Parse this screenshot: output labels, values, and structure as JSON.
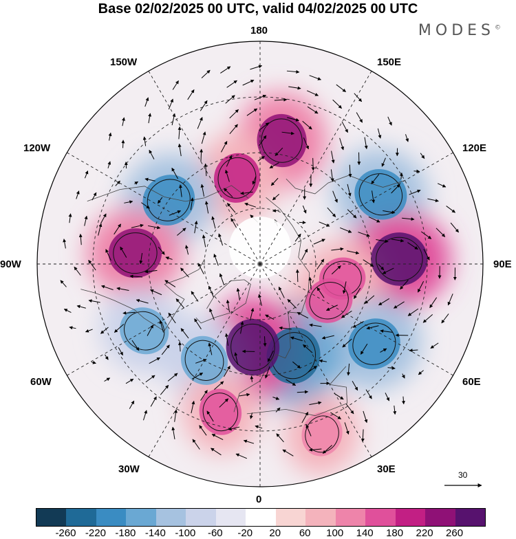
{
  "title": "Base 02/02/2025 00 UTC, valid 04/02/2025 00 UTC",
  "brand": "MODES",
  "brand_mark": "©",
  "longitude_labels": {
    "top": "180",
    "bottom": "0",
    "left": "90W",
    "right": "90E",
    "upper_left": "150W",
    "upper_right": "150E",
    "mid_upper_left": "120W",
    "mid_upper_right": "120E",
    "mid_lower_left": "60W",
    "mid_lower_right": "60E",
    "lower_left": "30W",
    "lower_right": "30E"
  },
  "reference_vector": "30",
  "colorbar": {
    "colors": [
      "#123a55",
      "#1f6a97",
      "#3a8cc2",
      "#6aa8d3",
      "#a6c2e0",
      "#cbd3ea",
      "#e6e6f2",
      "#ffffff",
      "#f8d5d3",
      "#f4b3bc",
      "#ee84aa",
      "#e0509b",
      "#c21f84",
      "#8f1176",
      "#57126e"
    ],
    "labels": [
      "-260",
      "-220",
      "-180",
      "-140",
      "-100",
      "-60",
      "-20",
      "20",
      "60",
      "100",
      "140",
      "180",
      "220",
      "260"
    ]
  },
  "anomaly_centers": [
    {
      "lon": 170,
      "lat": 45,
      "value": 220
    },
    {
      "lon": -165,
      "lat": 58,
      "value": 180
    },
    {
      "lon": -125,
      "lat": 50,
      "value": -220
    },
    {
      "lon": -95,
      "lat": 45,
      "value": 220
    },
    {
      "lon": 120,
      "lat": 40,
      "value": -220
    },
    {
      "lon": 92,
      "lat": 40,
      "value": 260
    },
    {
      "lon": 80,
      "lat": 60,
      "value": 140
    },
    {
      "lon": 62,
      "lat": 62,
      "value": 160
    },
    {
      "lon": 55,
      "lat": 40,
      "value": -220
    },
    {
      "lon": 20,
      "lat": 55,
      "value": -260
    },
    {
      "lon": -5,
      "lat": 60,
      "value": 260
    },
    {
      "lon": -30,
      "lat": 50,
      "value": -180
    },
    {
      "lon": -60,
      "lat": 42,
      "value": -180
    },
    {
      "lon": -15,
      "lat": 35,
      "value": 140
    },
    {
      "lon": 20,
      "lat": 25,
      "value": 120
    }
  ]
}
